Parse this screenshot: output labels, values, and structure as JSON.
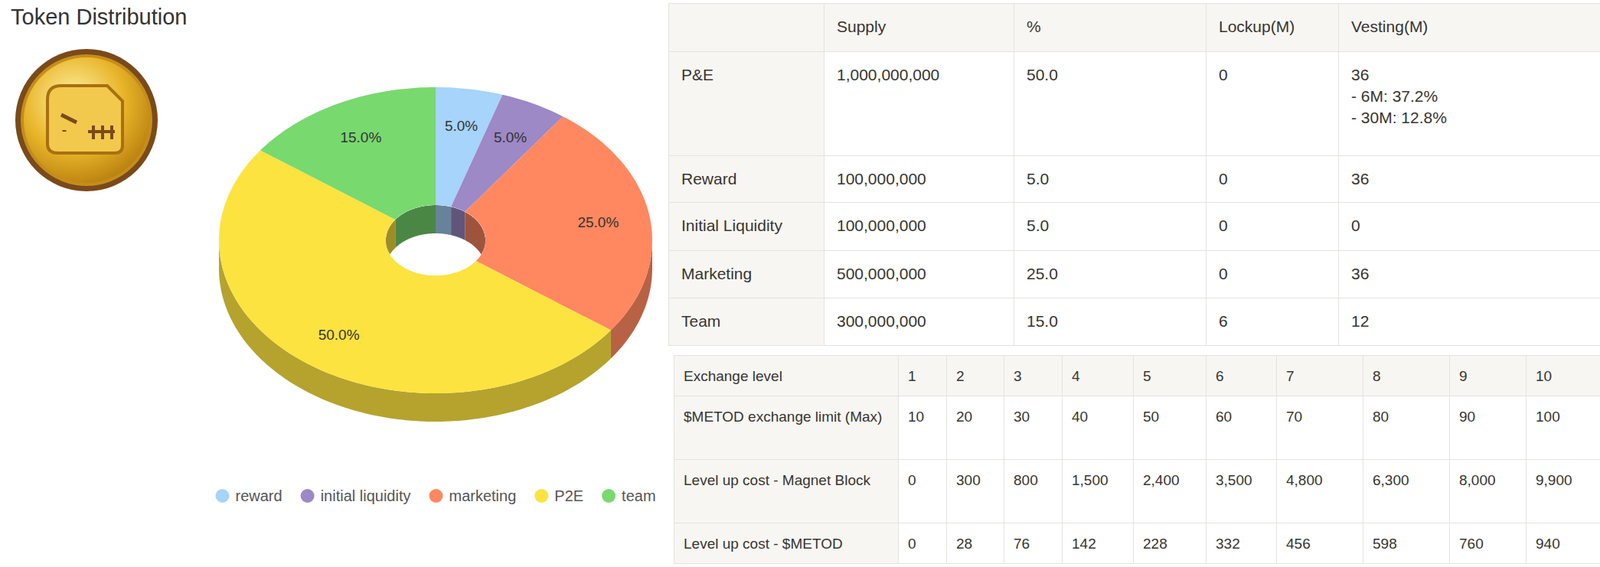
{
  "chart_data": {
    "type": "pie",
    "title": "Token Distribution",
    "categories": [
      "reward",
      "initial liquidity",
      "marketing",
      "P2E",
      "team"
    ],
    "values": [
      5,
      5,
      25,
      50,
      15
    ],
    "value_labels": [
      "5.0%",
      "5.0%",
      "25.0%",
      "50.0%",
      "15.0%"
    ],
    "colors": [
      "#a6d4fa",
      "#9c89c6",
      "#ff8860",
      "#fce33f",
      "#78d96f"
    ],
    "data_labels": true,
    "legend": "bottom"
  },
  "distribution_table": {
    "header": [
      "Supply",
      "%",
      "Lockup(M)",
      "Vesting(M)"
    ],
    "rows": [
      [
        "P&E",
        "1,000,000,000",
        "50.0",
        "0",
        [
          "36",
          "- 6M: 37.2%",
          "- 30M: 12.8%"
        ]
      ],
      [
        "Reward",
        "100,000,000",
        "5.0",
        "0",
        [
          "36"
        ]
      ],
      [
        "Initial Liquidity",
        "100,000,000",
        "5.0",
        "0",
        [
          "0"
        ]
      ],
      [
        "Marketing",
        "500,000,000",
        "25.0",
        "0",
        [
          "36"
        ]
      ],
      [
        "Team",
        "300,000,000",
        "15.0",
        "6",
        [
          "12"
        ]
      ]
    ]
  },
  "exchange_table": {
    "rows": [
      [
        "Exchange level",
        "1",
        "2",
        "3",
        "4",
        "5",
        "6",
        "7",
        "8",
        "9",
        "10"
      ],
      [
        "$METOD exchange limit (Max)",
        "10",
        "20",
        "30",
        "40",
        "50",
        "60",
        "70",
        "80",
        "90",
        "100"
      ],
      [
        "Level up cost - Magnet Block",
        "0",
        "300",
        "800",
        "1,500",
        "2,400",
        "3,500",
        "4,800",
        "6,300",
        "8,000",
        "9,900"
      ],
      [
        "Level up cost - $METOD",
        "0",
        "28",
        "76",
        "142",
        "228",
        "332",
        "456",
        "598",
        "760",
        "940"
      ]
    ]
  }
}
